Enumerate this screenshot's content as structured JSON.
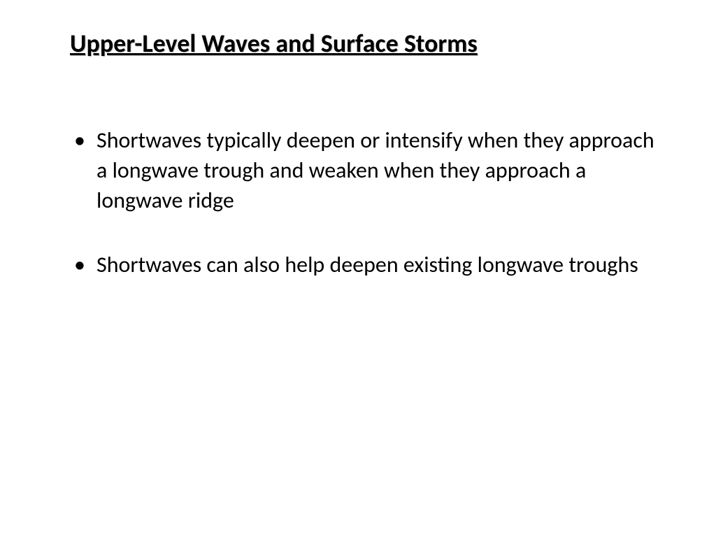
{
  "slide": {
    "title": "Upper-Level Waves and Surface Storms",
    "bullets": [
      "Shortwaves typically deepen or intensify when they approach a longwave trough and weaken when they approach a longwave ridge",
      "Shortwaves can also help deepen existing longwave troughs"
    ]
  },
  "styling": {
    "background_color": "#ffffff",
    "text_color": "#000000",
    "title_fontsize": 36,
    "title_weight": "bold",
    "title_decoration": "underline",
    "body_fontsize": 32,
    "font_family": "Calibri"
  }
}
